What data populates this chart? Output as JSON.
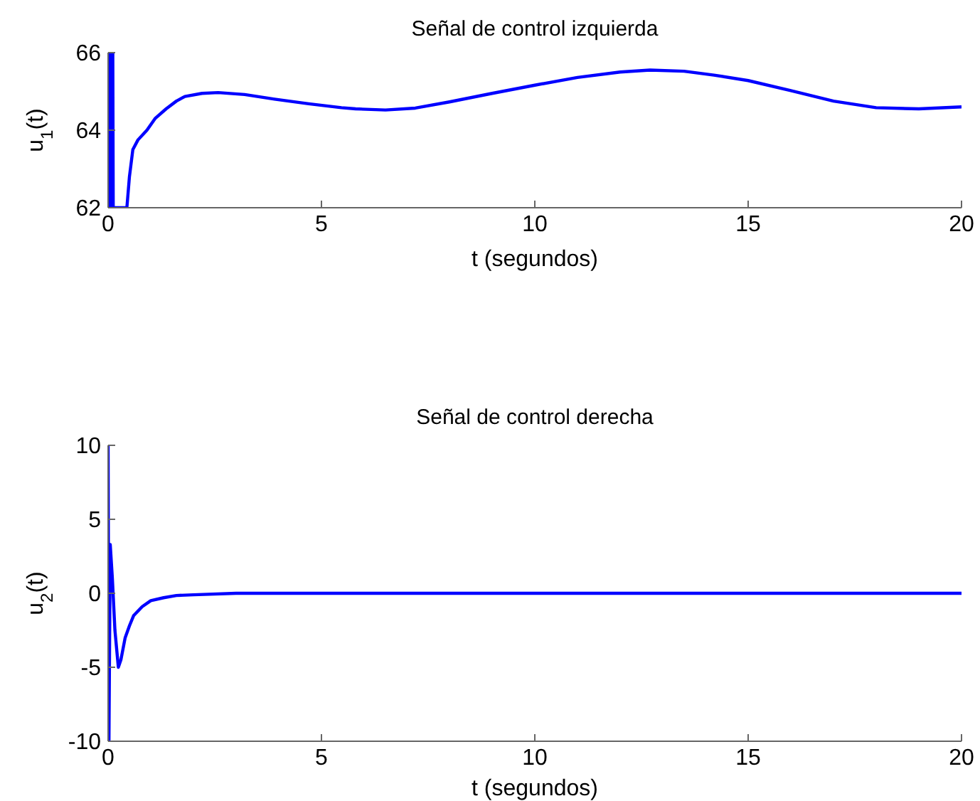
{
  "chart_data": [
    {
      "type": "line",
      "title": "Señal de control izquierda",
      "xlabel": "t (segundos)",
      "ylabel": "u$_{1}$(t)",
      "xlim": [
        0,
        20
      ],
      "ylim": [
        62,
        66
      ],
      "xticks": [
        0,
        5,
        10,
        15,
        20
      ],
      "yticks": [
        62,
        64,
        66
      ],
      "x": [
        0,
        0.03,
        0.04,
        0.05,
        0.09,
        0.1,
        0.11,
        0.12,
        0.44,
        0.5,
        0.58,
        0.7,
        0.91,
        1.1,
        1.36,
        1.6,
        1.8,
        2.2,
        2.58,
        3.2,
        3.9,
        4.7,
        5.47,
        5.8,
        6.5,
        7.2,
        8,
        9,
        10,
        11,
        12,
        12.7,
        13.5,
        14.2,
        15,
        16,
        17,
        18,
        19,
        20
      ],
      "series": [
        {
          "color": "#0000ff",
          "values": [
            62,
            66,
            66,
            62,
            62,
            66,
            66,
            62,
            62,
            62.8,
            63.5,
            63.75,
            64,
            64.3,
            64.55,
            64.75,
            64.87,
            64.95,
            64.97,
            64.92,
            64.8,
            64.68,
            64.58,
            64.55,
            64.52,
            64.57,
            64.73,
            64.95,
            65.16,
            65.36,
            65.5,
            65.55,
            65.52,
            65.42,
            65.28,
            65.02,
            64.75,
            64.58,
            64.55,
            64.6
          ]
        }
      ]
    },
    {
      "type": "line",
      "title": "Señal de control derecha",
      "xlabel": "t (segundos)",
      "ylabel": "u$_{2}$(t)",
      "xlim": [
        0,
        20
      ],
      "ylim": [
        -10,
        10
      ],
      "xticks": [
        0,
        5,
        10,
        15,
        20
      ],
      "yticks": [
        -10,
        -5,
        0,
        5,
        10
      ],
      "x": [
        0,
        0.02,
        0.05,
        0.1,
        0.16,
        0.24,
        0.3,
        0.4,
        0.5,
        0.6,
        0.8,
        1,
        1.3,
        1.6,
        2,
        3,
        5,
        10,
        15,
        20
      ],
      "series": [
        {
          "color": "#0000ff",
          "values": [
            10,
            -10,
            3.3,
            1,
            -2.5,
            -5,
            -4.5,
            -3,
            -2.2,
            -1.5,
            -0.9,
            -0.5,
            -0.3,
            -0.15,
            -0.1,
            0,
            0,
            0,
            0,
            0
          ]
        }
      ]
    }
  ]
}
